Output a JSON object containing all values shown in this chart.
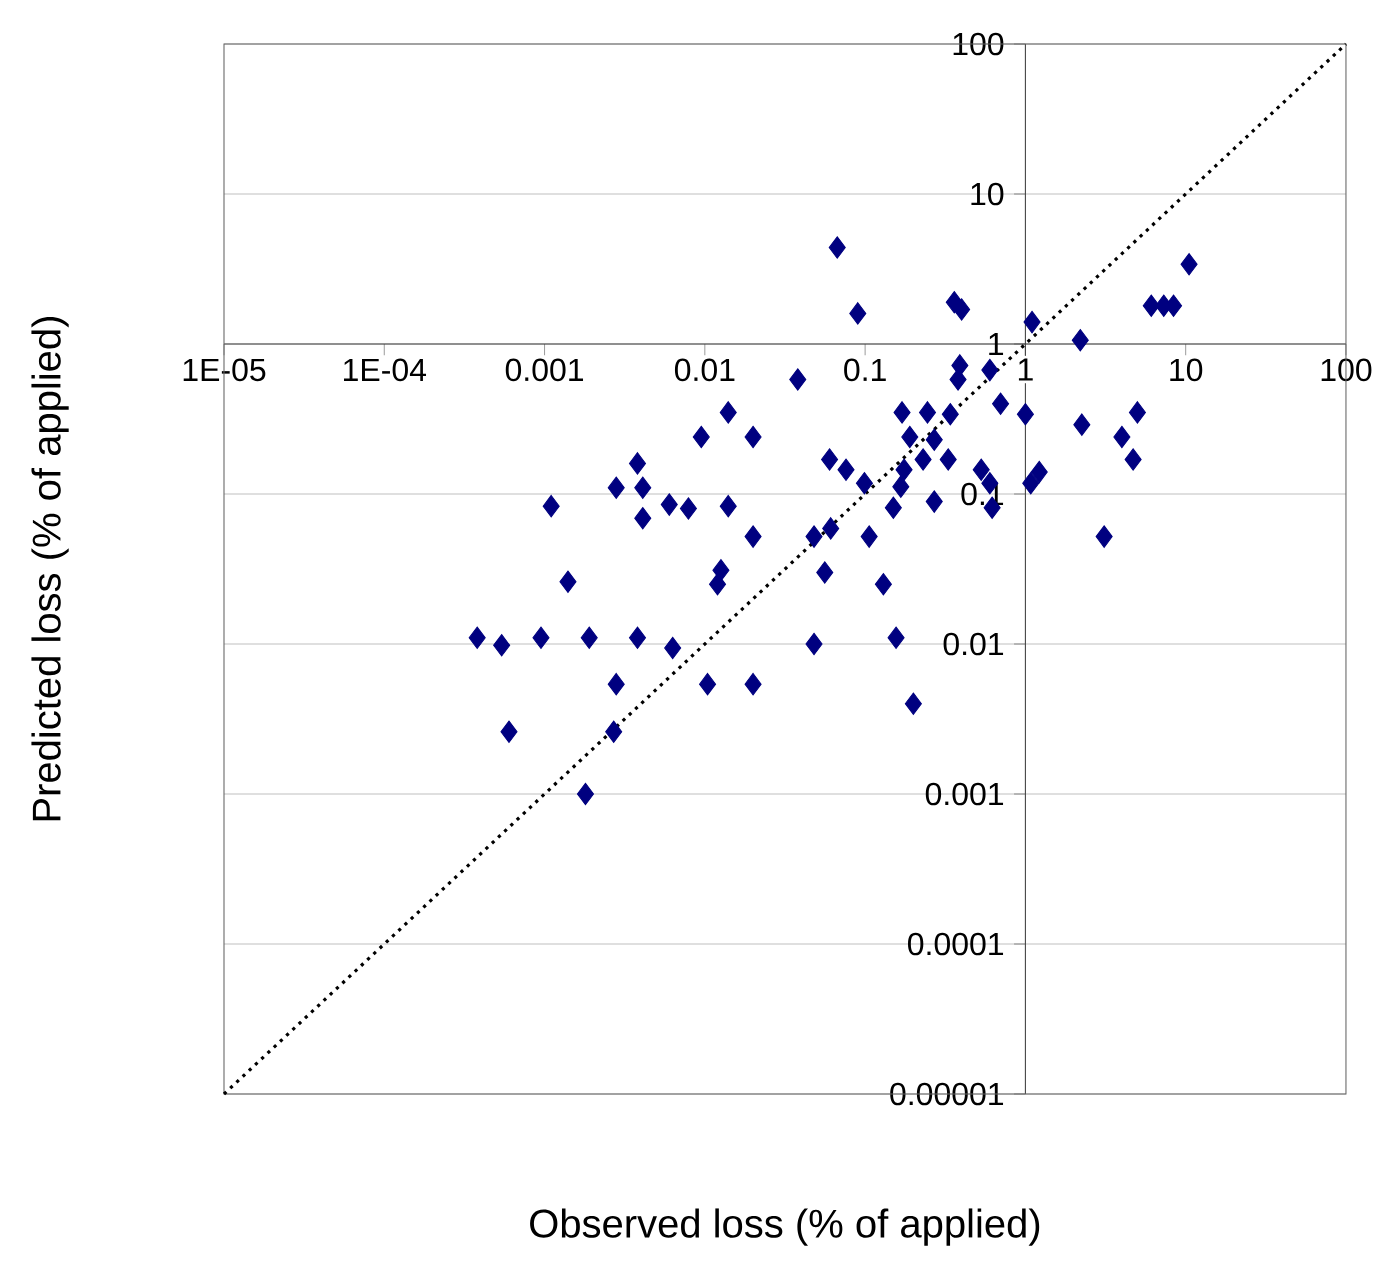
{
  "chart_data": {
    "type": "scatter",
    "xlabel": "Observed loss (% of applied)",
    "ylabel": "Predicted loss (% of applied)",
    "log": "xy",
    "grid": "y",
    "xlim": [
      1e-05,
      100
    ],
    "ylim": [
      1e-05,
      100
    ],
    "xticks": [
      {
        "value": 1e-05,
        "label": "1E-05"
      },
      {
        "value": 0.0001,
        "label": "1E-04"
      },
      {
        "value": 0.001,
        "label": "0.001"
      },
      {
        "value": 0.01,
        "label": "0.01"
      },
      {
        "value": 0.1,
        "label": "0.1"
      },
      {
        "value": 1,
        "label": "1"
      },
      {
        "value": 10,
        "label": "10"
      },
      {
        "value": 100,
        "label": "100"
      }
    ],
    "yticks": [
      {
        "value": 1e-05,
        "label": "0.00001"
      },
      {
        "value": 0.0001,
        "label": "0.0001"
      },
      {
        "value": 0.001,
        "label": "0.001"
      },
      {
        "value": 0.01,
        "label": "0.01"
      },
      {
        "value": 0.1,
        "label": "0.1"
      },
      {
        "value": 1,
        "label": "1"
      },
      {
        "value": 10,
        "label": "10"
      },
      {
        "value": 100,
        "label": "100"
      }
    ],
    "series": [
      {
        "color": "#000080",
        "marker": "diamond",
        "x": [
          0.038,
          0.0095,
          0.014,
          0.02,
          0.0038,
          0.0028,
          0.0041,
          0.0011,
          0.0041,
          0.006,
          0.0079,
          0.014,
          0.02,
          0.0126,
          0.012,
          0.0014,
          0.00038,
          0.00054,
          0.00095,
          0.0019,
          0.0038,
          0.0063,
          0.0028,
          0.0104,
          0.02,
          0.0006,
          0.0027,
          0.0018,
          0.048,
          0.056,
          0.048,
          0.061,
          0.06,
          0.076,
          0.067,
          0.09,
          0.36,
          0.4,
          1.1,
          2.2,
          6.1,
          7.3,
          8.4,
          10.5,
          0.39,
          0.38,
          0.6,
          0.7,
          1.0,
          2.25,
          4.0,
          5.0,
          4.7,
          3.1,
          0.17,
          0.245,
          0.34,
          0.19,
          0.27,
          0.099,
          0.175,
          0.23,
          0.33,
          0.53,
          0.6,
          0.62,
          1.08,
          1.22,
          0.167,
          0.15,
          0.27,
          0.106,
          0.13,
          0.156,
          0.2
        ],
        "values": [
          0.58,
          0.24,
          0.35,
          0.24,
          0.16,
          0.11,
          0.11,
          0.083,
          0.069,
          0.085,
          0.08,
          0.083,
          0.052,
          0.031,
          0.025,
          0.026,
          0.011,
          0.0098,
          0.011,
          0.011,
          0.011,
          0.0094,
          0.0054,
          0.0054,
          0.0054,
          0.0026,
          0.0026,
          0.001,
          0.01,
          0.03,
          0.052,
          0.059,
          0.17,
          0.145,
          4.4,
          1.6,
          1.9,
          1.7,
          1.4,
          1.06,
          1.8,
          1.8,
          1.8,
          3.4,
          0.72,
          0.58,
          0.67,
          0.4,
          0.34,
          0.29,
          0.24,
          0.35,
          0.17,
          0.052,
          0.35,
          0.35,
          0.34,
          0.24,
          0.23,
          0.118,
          0.145,
          0.17,
          0.17,
          0.145,
          0.118,
          0.081,
          0.118,
          0.14,
          0.112,
          0.081,
          0.089,
          0.052,
          0.025,
          0.011,
          0.004
        ]
      },
      {
        "type": "line",
        "color": "#000000",
        "line_style": "dotted",
        "x": [
          1e-05,
          100
        ],
        "values": [
          1e-05,
          100
        ]
      }
    ]
  }
}
